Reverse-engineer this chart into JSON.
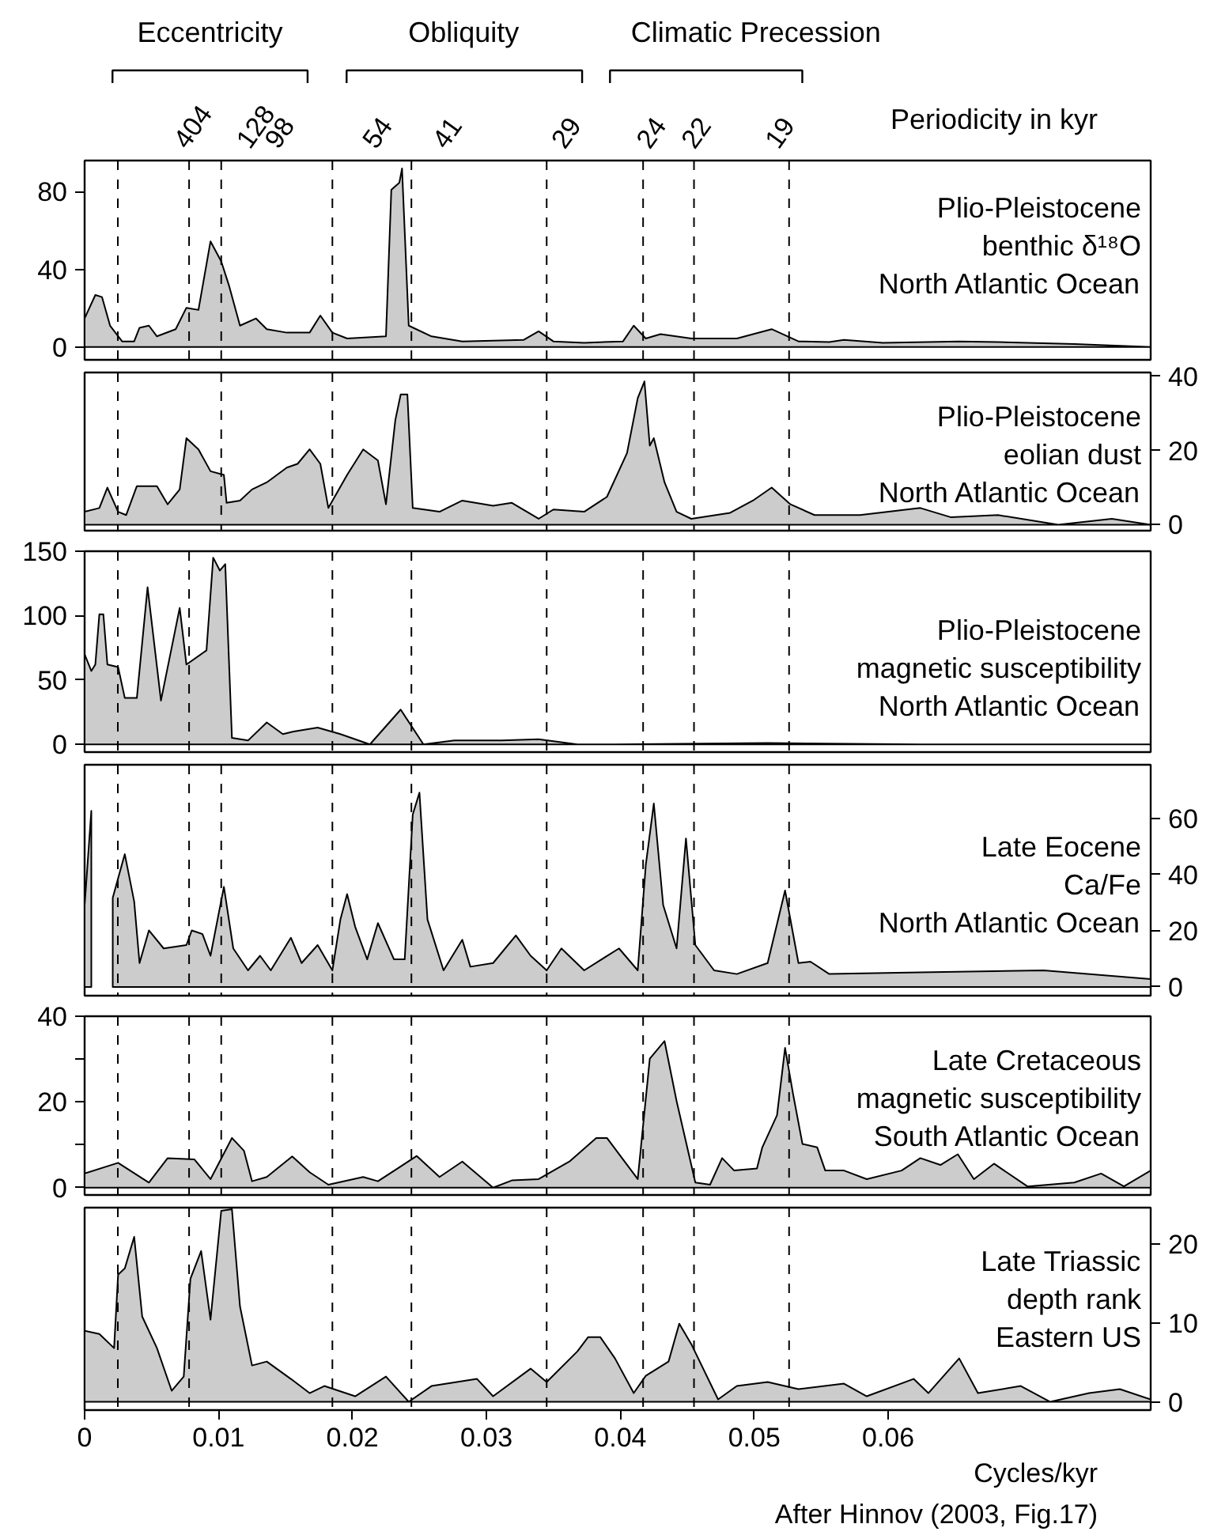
{
  "chart_data": [
    {
      "type": "area",
      "title": "Plio-Pleistocene\nbenthic δ¹⁸O\nNorth Atlantic Ocean",
      "annotations": [
        "Eccentricity",
        "Obliquity",
        "Climatic Precession",
        "Periodicity in kyr",
        "404",
        "128",
        "98",
        "54",
        "41",
        "29",
        "24",
        "22",
        "19"
      ],
      "xlim": [
        0,
        0.0796
      ],
      "ylim": [
        -6.6,
        96
      ],
      "yticks": [
        0,
        40,
        80
      ],
      "tick_labels": "y",
      "ref_lines": [
        {
          "axis": "x",
          "value": 0.00248,
          "line_style": "dashed"
        },
        {
          "axis": "x",
          "value": 0.0078,
          "line_style": "dashed"
        },
        {
          "axis": "x",
          "value": 0.0102,
          "line_style": "dashed"
        },
        {
          "axis": "x",
          "value": 0.0185,
          "line_style": "dashed"
        },
        {
          "axis": "x",
          "value": 0.0244,
          "line_style": "dashed"
        },
        {
          "axis": "x",
          "value": 0.0345,
          "line_style": "dashed"
        },
        {
          "axis": "x",
          "value": 0.0417,
          "line_style": "dashed"
        },
        {
          "axis": "x",
          "value": 0.0455,
          "line_style": "dashed"
        },
        {
          "axis": "x",
          "value": 0.0526,
          "line_style": "dashed"
        }
      ],
      "series": [
        {
          "color": "#cccccc",
          "x": [
            0,
            0.0008,
            0.0013,
            0.0019,
            0.0028,
            0.0037,
            0.0041,
            0.0048,
            0.0054,
            0.0068,
            0.0076,
            0.0085,
            0.0094,
            0.0102,
            0.0108,
            0.0116,
            0.0128,
            0.0136,
            0.0151,
            0.0168,
            0.0176,
            0.0185,
            0.0196,
            0.0225,
            0.0229,
            0.0235,
            0.0237,
            0.0242,
            0.0259,
            0.0282,
            0.0328,
            0.0339,
            0.035,
            0.0373,
            0.0402,
            0.041,
            0.0419,
            0.043,
            0.0453,
            0.0487,
            0.0513,
            0.0533,
            0.0556,
            0.0567,
            0.0596,
            0.0653,
            0.0682,
            0.0739,
            0.0796
          ],
          "values": [
            14.7,
            26.8,
            25.7,
            11.0,
            2.9,
            2.9,
            9.9,
            11.0,
            5.5,
            9.2,
            20.2,
            19.1,
            54.4,
            44.1,
            31.2,
            11.0,
            14.7,
            9.2,
            7.4,
            7.4,
            16.2,
            7.4,
            4.4,
            5.5,
            80.9,
            84.6,
            91.9,
            11.0,
            5.5,
            2.9,
            3.7,
            8.1,
            2.9,
            2.2,
            2.9,
            11.0,
            4.4,
            6.6,
            4.4,
            4.4,
            9.2,
            2.9,
            2.6,
            3.7,
            2.2,
            2.9,
            2.6,
            1.5,
            0
          ]
        }
      ]
    },
    {
      "type": "area",
      "title": "Plio-Pleistocene\neolian dust\nNorth Atlantic Ocean",
      "xlim": [
        0,
        0.0796
      ],
      "ylim": [
        -1.6,
        41
      ],
      "yticks": [
        0,
        20,
        40
      ],
      "tick_labels": "y",
      "ref_lines": [
        {
          "axis": "x",
          "value": 0.00248,
          "line_style": "dashed"
        },
        {
          "axis": "x",
          "value": 0.0102,
          "line_style": "dashed"
        },
        {
          "axis": "x",
          "value": 0.0185,
          "line_style": "dashed"
        },
        {
          "axis": "x",
          "value": 0.0345,
          "line_style": "dashed"
        },
        {
          "axis": "x",
          "value": 0.0455,
          "line_style": "dashed"
        },
        {
          "axis": "x",
          "value": 0.0526,
          "line_style": "dashed"
        }
      ],
      "series": [
        {
          "color": "#cccccc",
          "x": [
            0,
            0.0011,
            0.0017,
            0.0025,
            0.0031,
            0.0039,
            0.0054,
            0.0062,
            0.0071,
            0.0076,
            0.0085,
            0.0094,
            0.0104,
            0.0106,
            0.0116,
            0.0125,
            0.0136,
            0.0151,
            0.0159,
            0.0168,
            0.0176,
            0.0182,
            0.0196,
            0.0208,
            0.0219,
            0.0225,
            0.0232,
            0.0236,
            0.0241,
            0.0245,
            0.0265,
            0.0282,
            0.0305,
            0.0319,
            0.0339,
            0.035,
            0.0373,
            0.039,
            0.0405,
            0.0413,
            0.0418,
            0.0422,
            0.0425,
            0.0433,
            0.0442,
            0.0453,
            0.0482,
            0.0499,
            0.0513,
            0.0527,
            0.0545,
            0.0579,
            0.0624,
            0.0647,
            0.0682,
            0.0727,
            0.0767,
            0.0796
          ],
          "values": [
            3.5,
            4.5,
            10.0,
            3.5,
            2.6,
            10.4,
            10.4,
            5.5,
            9.5,
            23.3,
            20.3,
            14.4,
            13.4,
            5.9,
            6.5,
            9.5,
            11.4,
            15.4,
            16.4,
            20.3,
            16.4,
            4.5,
            13.4,
            20.3,
            17.3,
            5.5,
            28.2,
            35.1,
            35.1,
            4.5,
            3.5,
            6.5,
            5.1,
            5.9,
            1.6,
            4.1,
            3.5,
            7.5,
            19.3,
            34.1,
            38.6,
            21.3,
            23.3,
            11.4,
            3.5,
            1.6,
            3.2,
            6.5,
            10.0,
            5.5,
            2.6,
            2.6,
            4.5,
            2.0,
            2.6,
            0,
            1.6,
            0
          ]
        }
      ]
    },
    {
      "type": "area",
      "title": "Plio-Pleistocene\nmagnetic susceptibility\nNorth Atlantic Ocean",
      "xlim": [
        0,
        0.0796
      ],
      "ylim": [
        -6,
        150
      ],
      "yticks": [
        0,
        50,
        100,
        150
      ],
      "tick_labels": "y",
      "ref_lines": [
        {
          "axis": "x",
          "value": 0.00248,
          "line_style": "dashed"
        },
        {
          "axis": "x",
          "value": 0.0078,
          "line_style": "dashed"
        },
        {
          "axis": "x",
          "value": 0.0185,
          "line_style": "dashed"
        },
        {
          "axis": "x",
          "value": 0.0244,
          "line_style": "dashed"
        },
        {
          "axis": "x",
          "value": 0.0345,
          "line_style": "dashed"
        },
        {
          "axis": "x",
          "value": 0.0417,
          "line_style": "dashed"
        },
        {
          "axis": "x",
          "value": 0.0455,
          "line_style": "dashed"
        },
        {
          "axis": "x",
          "value": 0.0526,
          "line_style": "dashed"
        }
      ],
      "series": [
        {
          "color": "#cccccc",
          "x": [
            0,
            0.0005,
            0.0008,
            0.0011,
            0.0014,
            0.0017,
            0.0025,
            0.003,
            0.0039,
            0.0047,
            0.0057,
            0.0071,
            0.0076,
            0.0091,
            0.0096,
            0.0101,
            0.0105,
            0.011,
            0.0122,
            0.0136,
            0.0148,
            0.0156,
            0.0174,
            0.0191,
            0.0213,
            0.0236,
            0.0253,
            0.0276,
            0.0311,
            0.0339,
            0.0368,
            0.0396,
            0.051,
            0.0624,
            0.0796
          ],
          "values": [
            70,
            57,
            62,
            101,
            101,
            62,
            60,
            36,
            36,
            122,
            34,
            106,
            62,
            73,
            145,
            135,
            140,
            5,
            3,
            17,
            8,
            10,
            13,
            8,
            0,
            27,
            0,
            3,
            3,
            4,
            0,
            0,
            1,
            0,
            0
          ]
        }
      ]
    },
    {
      "type": "area",
      "title": "Late Eocene\nCa/Fe\nNorth Atlantic Ocean",
      "xlim": [
        0,
        0.0796
      ],
      "ylim": [
        -3.1,
        79
      ],
      "yticks": [
        0,
        20,
        40,
        60
      ],
      "tick_labels": "y",
      "ref_lines": [
        {
          "axis": "x",
          "value": 0.00248,
          "line_style": "dashed"
        },
        {
          "axis": "x",
          "value": 0.0078,
          "line_style": "dashed"
        },
        {
          "axis": "x",
          "value": 0.0102,
          "line_style": "dashed"
        },
        {
          "axis": "x",
          "value": 0.0185,
          "line_style": "dashed"
        },
        {
          "axis": "x",
          "value": 0.0244,
          "line_style": "dashed"
        },
        {
          "axis": "x",
          "value": 0.0345,
          "line_style": "dashed"
        },
        {
          "axis": "x",
          "value": 0.0417,
          "line_style": "dashed"
        },
        {
          "axis": "x",
          "value": 0.0455,
          "line_style": "dashed"
        },
        {
          "axis": "x",
          "value": 0.0526,
          "line_style": "dashed"
        }
      ],
      "series": [
        {
          "color": "#cccccc",
          "x": [
            0,
            0.0005,
            0.0009,
            0.0017,
            0.0021,
            0.0024,
            0.003,
            0.0037,
            0.0041,
            0.0048,
            0.0059,
            0.0076,
            0.008,
            0.0088,
            0.0094,
            0.0104,
            0.0111,
            0.0122,
            0.0131,
            0.0139,
            0.0154,
            0.0162,
            0.0174,
            0.0185,
            0.0191,
            0.0196,
            0.0202,
            0.0211,
            0.0219,
            0.0231,
            0.0239,
            0.0245,
            0.025,
            0.0256,
            0.0268,
            0.0282,
            0.0288,
            0.0305,
            0.0322,
            0.0333,
            0.0345,
            0.0356,
            0.0373,
            0.0399,
            0.0413,
            0.0419,
            0.0425,
            0.0432,
            0.0442,
            0.0449,
            0.0456,
            0.047,
            0.0487,
            0.051,
            0.0523,
            0.0533,
            0.0542,
            0.0556,
            0.0624,
            0.0716,
            0.0796
          ],
          "values": [
            29,
            62.6,
            null,
            null,
            31.7,
            36.9,
            47.2,
            30.4,
            8.5,
            20.1,
            13.7,
            14.9,
            20.1,
            18.8,
            11.1,
            35.6,
            13.7,
            5.9,
            11.1,
            5.9,
            17.5,
            8.5,
            14.9,
            5.9,
            24.0,
            33.0,
            21.4,
            9.8,
            22.7,
            9.8,
            9.8,
            61.3,
            69.1,
            24.0,
            5.9,
            16.8,
            7.2,
            8.5,
            18.3,
            11.1,
            5.9,
            13.7,
            5.9,
            13.7,
            5.9,
            43.3,
            65.2,
            29.1,
            13.7,
            52.8,
            14.9,
            5.9,
            4.6,
            8.5,
            34.3,
            8.5,
            9.0,
            4.6,
            5.2,
            5.9,
            2.8
          ]
        }
      ]
    },
    {
      "type": "area",
      "title": "Late Cretaceous\nmagnetic susceptibility\nSouth Atlantic Ocean",
      "xlim": [
        0,
        0.0796
      ],
      "ylim": [
        -1.7,
        40
      ],
      "yticks": [
        0,
        {
          "value": 10,
          "label": null
        },
        20,
        {
          "value": 30,
          "label": null
        },
        40
      ],
      "tick_labels": "y",
      "ref_lines": [
        {
          "axis": "x",
          "value": 0.00248,
          "line_style": "dashed"
        },
        {
          "axis": "x",
          "value": 0.0078,
          "line_style": "dashed"
        },
        {
          "axis": "x",
          "value": 0.0102,
          "line_style": "dashed"
        },
        {
          "axis": "x",
          "value": 0.0185,
          "line_style": "dashed"
        },
        {
          "axis": "x",
          "value": 0.0244,
          "line_style": "dashed"
        },
        {
          "axis": "x",
          "value": 0.0345,
          "line_style": "dashed"
        },
        {
          "axis": "x",
          "value": 0.0417,
          "line_style": "dashed"
        },
        {
          "axis": "x",
          "value": 0.0455,
          "line_style": "dashed"
        },
        {
          "axis": "x",
          "value": 0.0526,
          "line_style": "dashed"
        }
      ],
      "series": [
        {
          "color": "#cccccc",
          "x": [
            0,
            0.0025,
            0.0048,
            0.0062,
            0.0082,
            0.0094,
            0.011,
            0.0119,
            0.0125,
            0.0136,
            0.0155,
            0.0168,
            0.0182,
            0.0208,
            0.0219,
            0.0248,
            0.0265,
            0.0282,
            0.0305,
            0.0319,
            0.0339,
            0.0362,
            0.0382,
            0.039,
            0.0413,
            0.0422,
            0.0433,
            0.0442,
            0.0456,
            0.0467,
            0.0476,
            0.0485,
            0.0502,
            0.0506,
            0.0517,
            0.0523,
            0.0529,
            0.0536,
            0.0547,
            0.0553,
            0.0567,
            0.0584,
            0.061,
            0.0624,
            0.0639,
            0.0652,
            0.0664,
            0.0679,
            0.0704,
            0.0739,
            0.0759,
            0.0776,
            0.0796
          ],
          "values": [
            3.3,
            5.8,
            1.2,
            6.9,
            6.6,
            2.0,
            11.6,
            8.6,
            1.5,
            2.5,
            7.3,
            3.6,
            0.7,
            2.5,
            1.5,
            7.4,
            2.5,
            6.1,
            0,
            1.7,
            2.0,
            6.1,
            11.6,
            11.6,
            2.0,
            30.1,
            34.2,
            20.2,
            1.2,
            0.7,
            6.9,
            4.0,
            4.5,
            9.4,
            16.9,
            32.6,
            21.8,
            10.2,
            9.4,
            4.0,
            4.0,
            2.0,
            4.0,
            6.9,
            5.3,
            7.8,
            2.0,
            5.6,
            0.3,
            1.2,
            3.3,
            0.3,
            4.0
          ]
        }
      ]
    },
    {
      "type": "area",
      "title": "Late Triassic\ndepth rank\nEastern US",
      "xlabel": "Cycles/kyr",
      "annotations": [
        "After Hinnov (2003, Fig.17)"
      ],
      "xlim": [
        0,
        0.0796
      ],
      "xticks": [
        0,
        0.01,
        0.02,
        0.03,
        0.04,
        0.05,
        0.06
      ],
      "ylim": [
        -1.05,
        24.6
      ],
      "yticks": [
        0,
        10,
        20
      ],
      "ref_lines": [
        {
          "axis": "x",
          "value": 0.00248,
          "line_style": "dashed"
        },
        {
          "axis": "x",
          "value": 0.0078,
          "line_style": "dashed"
        },
        {
          "axis": "x",
          "value": 0.0185,
          "line_style": "dashed"
        },
        {
          "axis": "x",
          "value": 0.0244,
          "line_style": "dashed"
        },
        {
          "axis": "x",
          "value": 0.0345,
          "line_style": "dashed"
        },
        {
          "axis": "x",
          "value": 0.0417,
          "line_style": "dashed"
        },
        {
          "axis": "x",
          "value": 0.0455,
          "line_style": "dashed"
        },
        {
          "axis": "x",
          "value": 0.0526,
          "line_style": "dashed"
        }
      ],
      "series": [
        {
          "color": "#cccccc",
          "x": [
            0,
            0.0011,
            0.0022,
            0.0025,
            0.003,
            0.0037,
            0.0043,
            0.0054,
            0.0065,
            0.0074,
            0.0079,
            0.0087,
            0.0094,
            0.0102,
            0.011,
            0.0116,
            0.0125,
            0.0136,
            0.0154,
            0.0168,
            0.0179,
            0.0202,
            0.0225,
            0.0242,
            0.0259,
            0.0293,
            0.0305,
            0.0333,
            0.0345,
            0.0368,
            0.0376,
            0.0385,
            0.0396,
            0.041,
            0.0419,
            0.0436,
            0.0444,
            0.0453,
            0.0473,
            0.0487,
            0.051,
            0.0533,
            0.0567,
            0.0584,
            0.0619,
            0.063,
            0.0653,
            0.0667,
            0.0699,
            0.0721,
            0.075,
            0.0773,
            0.0796
          ],
          "values": [
            9.0,
            8.6,
            6.8,
            16.1,
            16.9,
            20.9,
            10.8,
            6.8,
            1.4,
            3.2,
            15.6,
            19.1,
            10.4,
            24.2,
            24.4,
            12.1,
            4.6,
            5.1,
            2.9,
            1.1,
            2.0,
            0.7,
            3.2,
            0,
            2.0,
            2.9,
            0.7,
            4.2,
            2.5,
            6.4,
            8.2,
            8.2,
            5.5,
            1.1,
            3.3,
            5.1,
            9.9,
            7.3,
            0.3,
            2.0,
            2.5,
            1.6,
            2.3,
            0.7,
            2.9,
            1.1,
            5.5,
            1.1,
            2.0,
            0,
            1.1,
            1.6,
            0.3
          ]
        }
      ]
    }
  ]
}
